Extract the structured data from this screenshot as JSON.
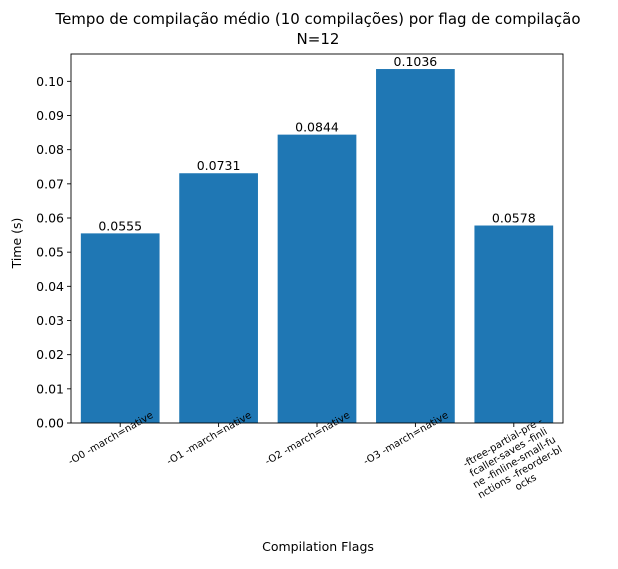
{
  "chart_data": {
    "type": "bar",
    "title": "Tempo de compilação médio (10 compilações) por flag de compilação",
    "subtitle": "N=12",
    "xlabel": "Compilation Flags",
    "ylabel": "Time (s)",
    "ylim": [
      0,
      0.108
    ],
    "yticks": [
      "0.00",
      "0.01",
      "0.02",
      "0.03",
      "0.04",
      "0.05",
      "0.06",
      "0.07",
      "0.08",
      "0.09",
      "0.10"
    ],
    "categories": [
      [
        "-O0 -march=native"
      ],
      [
        "-O1 -march=native"
      ],
      [
        "-O2 -march=native"
      ],
      [
        "-O3 -march=native"
      ],
      [
        "-ftree-partial-pre -",
        "fcaller-saves -finli",
        "ne -finline-small-fu",
        "nctions -freorder-bl",
        "ocks"
      ]
    ],
    "values": [
      0.0555,
      0.0731,
      0.0844,
      0.1036,
      0.0578
    ],
    "value_labels": [
      "0.0555",
      "0.0731",
      "0.0844",
      "0.1036",
      "0.0578"
    ],
    "bar_color": "#1f77b4",
    "grid": false,
    "legend": "none"
  }
}
